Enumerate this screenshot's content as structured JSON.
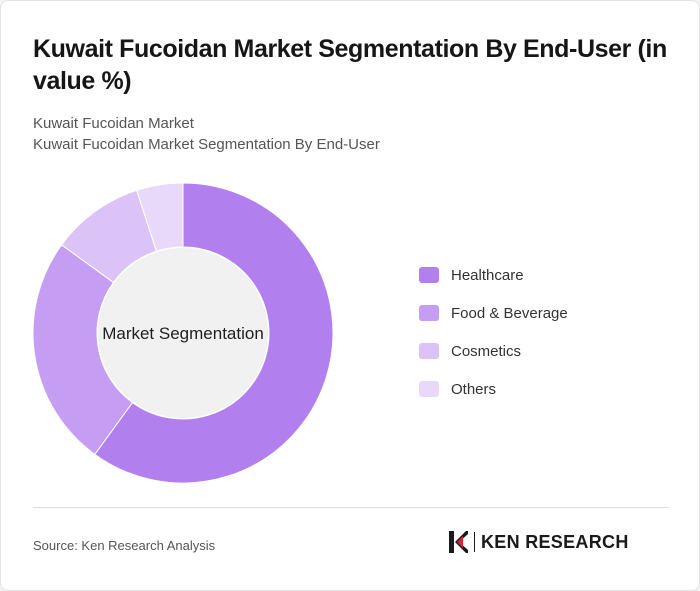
{
  "title": "Kuwait Fucoidan Market Segmentation By End-User (in value %)",
  "subtitle_lines": [
    "Kuwait Fucoidan Market",
    "Kuwait Fucoidan Market Segmentation By End-User"
  ],
  "chart_data": {
    "type": "pie",
    "variant": "donut",
    "center_label": "Market Segmentation",
    "categories": [
      "Healthcare",
      "Food & Beverage",
      "Cosmetics",
      "Others"
    ],
    "values": [
      60,
      25,
      10,
      5
    ],
    "colors": [
      "#b27fee",
      "#c59df2",
      "#dbc3f8",
      "#e8d9fa"
    ],
    "center_color": "#f1f1f1",
    "legend_position": "right",
    "data_labels": false
  },
  "footer": {
    "source": "Source: Ken Research Analysis",
    "brand": "KEN RESEARCH",
    "brand_mark_icon": "ken-research-k-logo-icon"
  }
}
